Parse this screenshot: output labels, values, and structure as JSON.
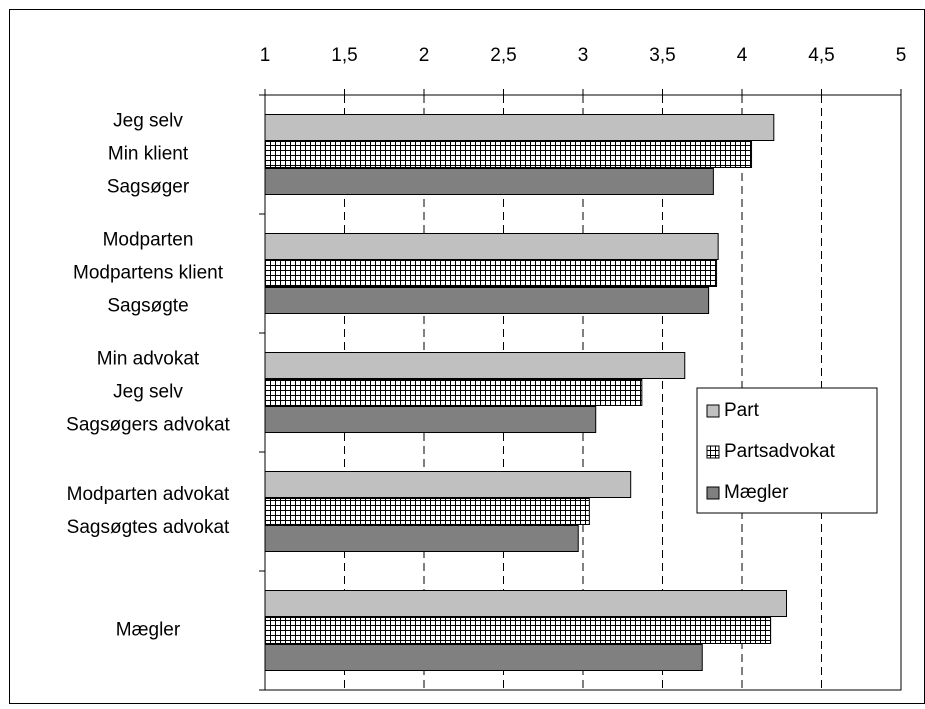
{
  "chart_data": {
    "type": "bar",
    "orientation": "horizontal",
    "categories": [
      [
        "Jeg selv",
        "Min klient",
        "Sagsøger"
      ],
      [
        "Modparten",
        "Modpartens klient",
        "Sagsøgte"
      ],
      [
        "Min advokat",
        "Jeg selv",
        "Sagsøgers advokat"
      ],
      [
        "Modparten advokat",
        "Sagsøgtes advokat"
      ],
      [
        "Mægler"
      ]
    ],
    "series": [
      {
        "name": "Part",
        "color": "#c0c0c0",
        "values": [
          4.2,
          3.85,
          3.64,
          3.3,
          4.28
        ]
      },
      {
        "name": "Partsadvokat",
        "color": "#ffffff",
        "pattern": "grid",
        "values": [
          4.06,
          3.84,
          3.37,
          3.04,
          4.18
        ]
      },
      {
        "name": "Mægler",
        "color": "#808080",
        "values": [
          3.82,
          3.79,
          3.08,
          2.97,
          3.75
        ]
      }
    ],
    "xlim": [
      1,
      5
    ],
    "xticks": [
      1,
      {
        "value": 1.5,
        "label": "1,5"
      },
      2,
      {
        "value": 2.5,
        "label": "2,5"
      },
      3,
      {
        "value": 3.5,
        "label": "3,5"
      },
      4,
      {
        "value": 4.5,
        "label": "4,5"
      },
      5
    ],
    "grid": true,
    "legend": "right"
  }
}
